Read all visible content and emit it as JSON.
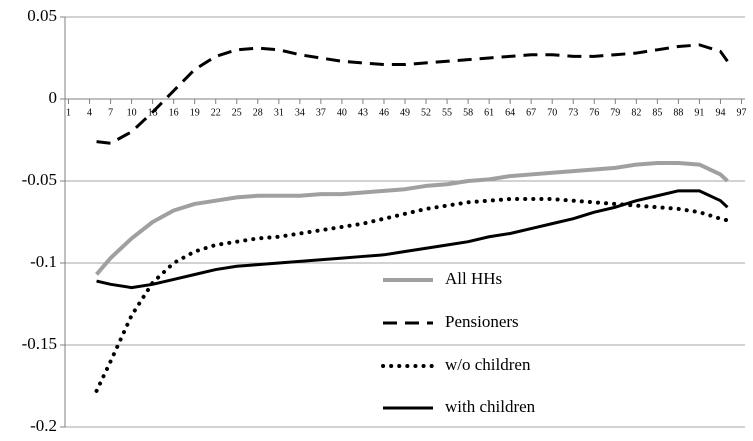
{
  "chart_data": {
    "type": "line",
    "xlim": [
      0.5,
      97.5
    ],
    "xticks": [
      1,
      4,
      7,
      10,
      13,
      16,
      19,
      22,
      25,
      28,
      31,
      34,
      37,
      40,
      43,
      46,
      49,
      52,
      55,
      58,
      61,
      64,
      67,
      70,
      73,
      76,
      79,
      82,
      85,
      88,
      91,
      94,
      97
    ],
    "ylim": [
      -0.2,
      0.05
    ],
    "yticks": [
      0.05,
      0,
      -0.05,
      -0.1,
      -0.15,
      -0.2
    ],
    "grid": true,
    "x": [
      5,
      7,
      10,
      13,
      16,
      19,
      22,
      25,
      28,
      31,
      34,
      37,
      40,
      43,
      46,
      49,
      52,
      55,
      58,
      61,
      64,
      67,
      70,
      73,
      76,
      79,
      82,
      85,
      88,
      91,
      94,
      95
    ],
    "series": [
      {
        "name": "All HHs",
        "color": "#a0a0a0",
        "style": "solid",
        "width": 4,
        "values": [
          -0.107,
          -0.097,
          -0.085,
          -0.075,
          -0.068,
          -0.064,
          -0.062,
          -0.06,
          -0.059,
          -0.059,
          -0.059,
          -0.058,
          -0.058,
          -0.057,
          -0.056,
          -0.055,
          -0.053,
          -0.052,
          -0.05,
          -0.049,
          -0.047,
          -0.046,
          -0.045,
          -0.044,
          -0.043,
          -0.042,
          -0.04,
          -0.039,
          -0.039,
          -0.04,
          -0.046,
          -0.05
        ]
      },
      {
        "name": "Pensioners",
        "color": "#000000",
        "style": "dashed",
        "width": 3,
        "values": [
          -0.026,
          -0.027,
          -0.02,
          -0.008,
          0.005,
          0.018,
          0.026,
          0.03,
          0.031,
          0.03,
          0.027,
          0.025,
          0.023,
          0.022,
          0.021,
          0.021,
          0.022,
          0.023,
          0.024,
          0.025,
          0.026,
          0.027,
          0.027,
          0.026,
          0.026,
          0.027,
          0.028,
          0.03,
          0.032,
          0.033,
          0.029,
          0.023
        ]
      },
      {
        "name": "w/o children",
        "color": "#000000",
        "style": "dotted",
        "width": 4,
        "values": [
          -0.178,
          -0.16,
          -0.132,
          -0.112,
          -0.1,
          -0.093,
          -0.089,
          -0.087,
          -0.085,
          -0.084,
          -0.082,
          -0.08,
          -0.078,
          -0.076,
          -0.073,
          -0.07,
          -0.067,
          -0.065,
          -0.063,
          -0.062,
          -0.061,
          -0.061,
          -0.061,
          -0.062,
          -0.063,
          -0.064,
          -0.065,
          -0.066,
          -0.067,
          -0.069,
          -0.073,
          -0.074
        ]
      },
      {
        "name": "with children",
        "color": "#000000",
        "style": "solid",
        "width": 3,
        "values": [
          -0.111,
          -0.113,
          -0.115,
          -0.113,
          -0.11,
          -0.107,
          -0.104,
          -0.102,
          -0.101,
          -0.1,
          -0.099,
          -0.098,
          -0.097,
          -0.096,
          -0.095,
          -0.093,
          -0.091,
          -0.089,
          -0.087,
          -0.084,
          -0.082,
          -0.079,
          -0.076,
          -0.073,
          -0.069,
          -0.066,
          -0.062,
          -0.059,
          -0.056,
          -0.056,
          -0.062,
          -0.066
        ]
      }
    ]
  }
}
